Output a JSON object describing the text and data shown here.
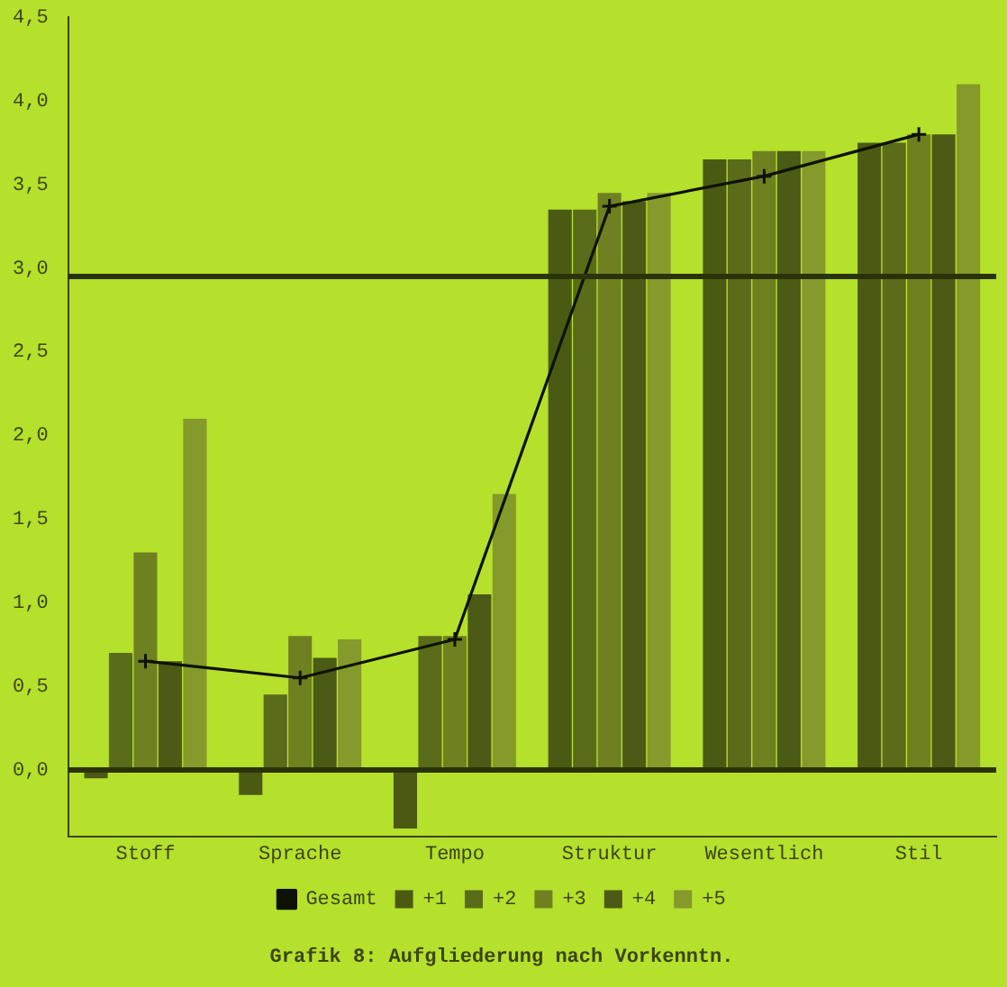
{
  "chart_data": {
    "type": "bar",
    "title": "Grafik 8: Aufgliederung nach Vorkenntn.",
    "categories": [
      "Stoff",
      "Sprache",
      "Tempo",
      "Struktur",
      "Wesentlich",
      "Stil"
    ],
    "series": [
      {
        "name": "Gesamt",
        "type": "line",
        "color": "#0e1203",
        "values": [
          0.65,
          0.55,
          0.78,
          3.37,
          3.55,
          3.8
        ]
      },
      {
        "name": "+1",
        "color": "#4a5a12",
        "values": [
          -0.05,
          -0.15,
          -0.35,
          3.35,
          3.65,
          3.75
        ]
      },
      {
        "name": "+2",
        "color": "#5a6b1a",
        "values": [
          0.7,
          0.45,
          0.8,
          3.35,
          3.65,
          3.75
        ]
      },
      {
        "name": "+3",
        "color": "#6f8020",
        "values": [
          1.3,
          0.8,
          0.8,
          3.45,
          3.7,
          3.8
        ]
      },
      {
        "name": "+4",
        "color": "#4b5a14",
        "values": [
          0.65,
          0.67,
          1.05,
          3.4,
          3.7,
          3.8
        ]
      },
      {
        "name": "+5",
        "color": "#849a2a",
        "values": [
          2.1,
          0.78,
          1.65,
          3.45,
          3.7,
          4.1
        ]
      }
    ],
    "ylim": [
      -0.4,
      4.5
    ],
    "yticks": [
      {
        "value": 0,
        "label": "0,0"
      },
      {
        "value": 0.5,
        "label": "0,5"
      },
      {
        "value": 1,
        "label": "1,0"
      },
      {
        "value": 1.5,
        "label": "1,5"
      },
      {
        "value": 2,
        "label": "2,0"
      },
      {
        "value": 2.5,
        "label": "2,5"
      },
      {
        "value": 3,
        "label": "3,0"
      },
      {
        "value": 3.5,
        "label": "3,5"
      },
      {
        "value": 4,
        "label": "4,0"
      },
      {
        "value": 4.5,
        "label": "4,5"
      }
    ],
    "ref_lines": [
      {
        "axis": "y",
        "value": 2.95,
        "color": "#2a3308"
      },
      {
        "axis": "y",
        "value": 0,
        "color": "#2a3308"
      }
    ],
    "legend": "bottom",
    "marker": "cross",
    "line_style": "solid",
    "grid": false
  }
}
